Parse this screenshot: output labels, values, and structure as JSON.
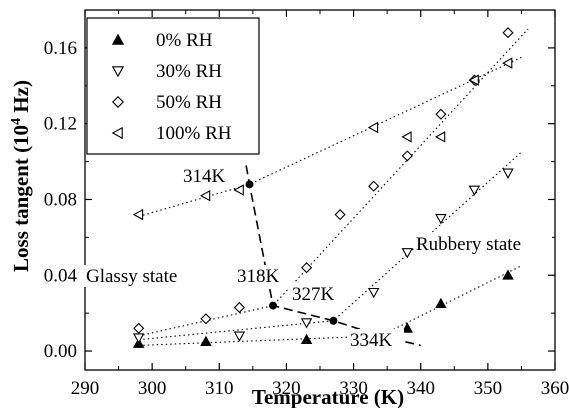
{
  "chart_data": {
    "type": "scatter",
    "xlabel": "Temperature (K)",
    "ylabel_main": "Loss tangent (10",
    "ylabel_sup": "4",
    "ylabel_tail": " Hz)",
    "xlim": [
      290,
      360
    ],
    "ylim": [
      -0.01,
      0.18
    ],
    "x_ticks": [
      290,
      300,
      310,
      320,
      330,
      340,
      350,
      360
    ],
    "x_tick_labels": [
      "290",
      "300",
      "310",
      "320",
      "330",
      "340",
      "350",
      "360"
    ],
    "y_ticks": [
      0.0,
      0.04,
      0.08,
      0.12,
      0.16
    ],
    "y_tick_labels": [
      "0.00",
      "0.04",
      "0.08",
      "0.12",
      "0.16"
    ],
    "legend_position": "top-left",
    "series": [
      {
        "name": "0% RH",
        "marker": "triangle-up-filled",
        "x": [
          298,
          308,
          323,
          338,
          343,
          353
        ],
        "y": [
          0.004,
          0.005,
          0.006,
          0.012,
          0.025,
          0.04
        ]
      },
      {
        "name": "30% RH",
        "marker": "triangle-down-open",
        "x": [
          298,
          313,
          323,
          333,
          338,
          343,
          348,
          353
        ],
        "y": [
          0.007,
          0.008,
          0.015,
          0.031,
          0.052,
          0.07,
          0.085,
          0.094
        ]
      },
      {
        "name": "50% RH",
        "marker": "diamond-open",
        "x": [
          298,
          308,
          313,
          323,
          328,
          333,
          338,
          343,
          348,
          353
        ],
        "y": [
          0.012,
          0.017,
          0.023,
          0.044,
          0.072,
          0.087,
          0.103,
          0.125,
          0.143,
          0.168
        ]
      },
      {
        "name": "100% RH",
        "marker": "triangle-left-open",
        "x": [
          298,
          308,
          313,
          333,
          338,
          343,
          348,
          353
        ],
        "y": [
          0.072,
          0.082,
          0.085,
          0.118,
          0.113,
          0.113,
          0.143,
          0.152
        ]
      }
    ],
    "fit_lines": [
      {
        "points": [
          [
            298,
            0.071
          ],
          [
            314.5,
            0.088
          ],
          [
            355,
            0.155
          ]
        ]
      },
      {
        "points": [
          [
            298,
            0.008
          ],
          [
            318,
            0.024
          ],
          [
            356,
            0.17
          ]
        ]
      },
      {
        "points": [
          [
            298,
            0.006
          ],
          [
            327,
            0.016
          ],
          [
            355,
            0.105
          ]
        ]
      },
      {
        "points": [
          [
            298,
            0.003
          ],
          [
            334,
            0.008
          ],
          [
            355,
            0.045
          ]
        ]
      }
    ],
    "transition_points": [
      {
        "x": 314.5,
        "y": 0.088,
        "label": "314K"
      },
      {
        "x": 318,
        "y": 0.024,
        "label": "318K"
      },
      {
        "x": 327,
        "y": 0.016,
        "label": "327K"
      },
      {
        "x": 334,
        "y": 0.008,
        "label": "334K"
      }
    ],
    "transition_curve": [
      [
        314.0,
        0.098
      ],
      [
        314.5,
        0.088
      ],
      [
        318,
        0.024
      ],
      [
        327,
        0.016
      ],
      [
        334,
        0.008
      ],
      [
        340,
        0.003
      ]
    ],
    "annotations": [
      "Glassy state",
      "Rubbery state"
    ]
  }
}
